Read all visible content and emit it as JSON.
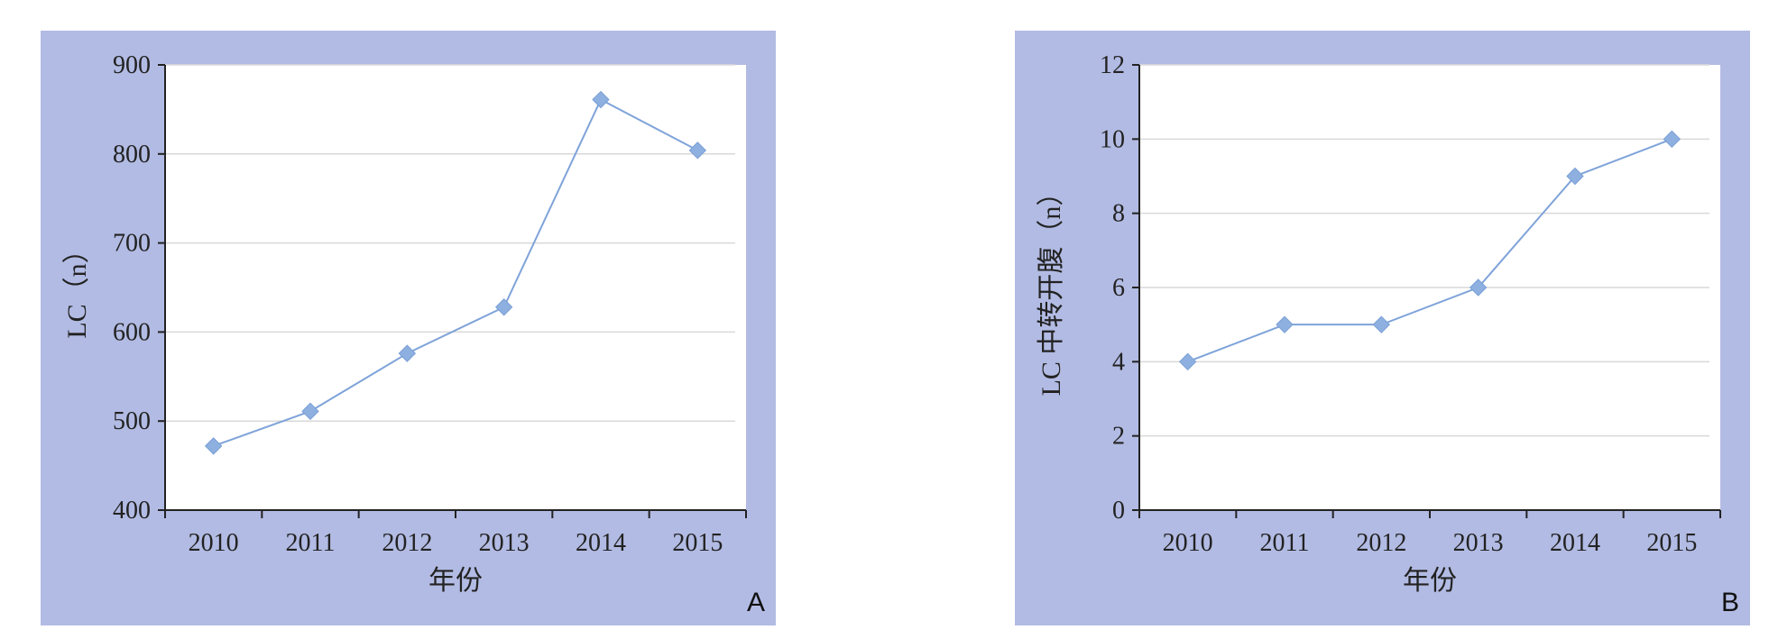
{
  "colors": {
    "panel_background": "#b2bbe3",
    "plot_background": "#ffffff",
    "series_line": "#7fa3d9",
    "marker": "#8eb0e0",
    "gridline": "#d9d9d9"
  },
  "chart_data": [
    {
      "type": "line",
      "panel_label": "A",
      "title": "",
      "xlabel": "年份",
      "ylabel": "LC（n）",
      "categories": [
        "2010",
        "2011",
        "2012",
        "2013",
        "2014",
        "2015"
      ],
      "values": [
        472,
        511,
        576,
        628,
        861,
        804
      ],
      "ylim": [
        400,
        900
      ],
      "yticks": [
        400,
        500,
        600,
        700,
        800,
        900
      ],
      "grid": true,
      "marker": "diamond",
      "legend": "none"
    },
    {
      "type": "line",
      "panel_label": "B",
      "title": "",
      "xlabel": "年份",
      "ylabel": "LC 中转开腹（n）",
      "categories": [
        "2010",
        "2011",
        "2012",
        "2013",
        "2014",
        "2015"
      ],
      "values": [
        4,
        5,
        5,
        6,
        9,
        10
      ],
      "ylim": [
        0,
        12
      ],
      "yticks": [
        0,
        2,
        4,
        6,
        8,
        10,
        12
      ],
      "grid": true,
      "marker": "diamond",
      "legend": "none"
    }
  ]
}
